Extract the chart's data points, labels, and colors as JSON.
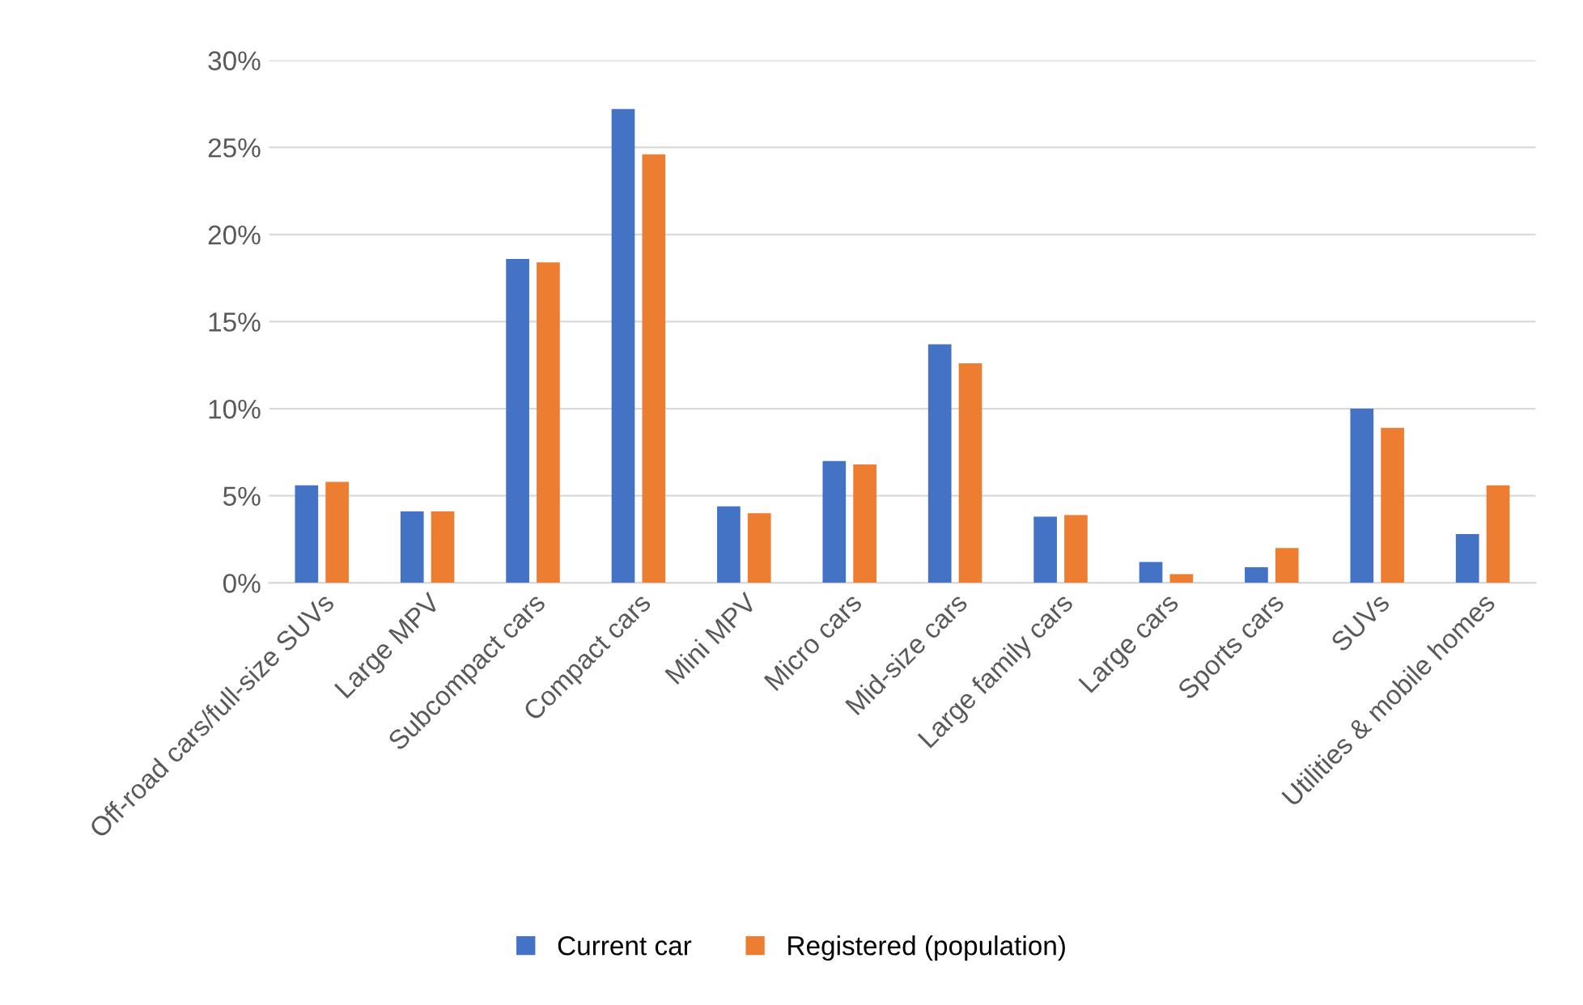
{
  "chart_data": {
    "type": "bar",
    "categories": [
      "Off-road cars/full-size SUVs",
      "Large MPV",
      "Subcompact cars",
      "Compact cars",
      "Mini MPV",
      "Micro cars",
      "Mid-size cars",
      "Large family cars",
      "Large cars",
      "Sports cars",
      "SUVs",
      "Utilities & mobile homes"
    ],
    "series": [
      {
        "name": "Current car",
        "color": "#4472c4",
        "values": [
          5.6,
          4.1,
          18.6,
          27.2,
          4.4,
          7.0,
          13.7,
          3.8,
          1.2,
          0.9,
          10.0,
          2.8
        ]
      },
      {
        "name": "Registered (population)",
        "color": "#ed7d31",
        "values": [
          5.8,
          4.1,
          18.4,
          24.6,
          4.0,
          6.8,
          12.6,
          3.9,
          0.5,
          2.0,
          8.9,
          5.6
        ]
      }
    ],
    "ylim": [
      0,
      30
    ],
    "yticks": [
      {
        "value": 0,
        "label": "0%"
      },
      {
        "value": 5,
        "label": "5%"
      },
      {
        "value": 10,
        "label": "10%"
      },
      {
        "value": 15,
        "label": "15%"
      },
      {
        "value": 20,
        "label": "20%"
      },
      {
        "value": 25,
        "label": "25%"
      },
      {
        "value": 30,
        "label": "30%"
      }
    ],
    "grid": "y",
    "legend": "bottom"
  }
}
